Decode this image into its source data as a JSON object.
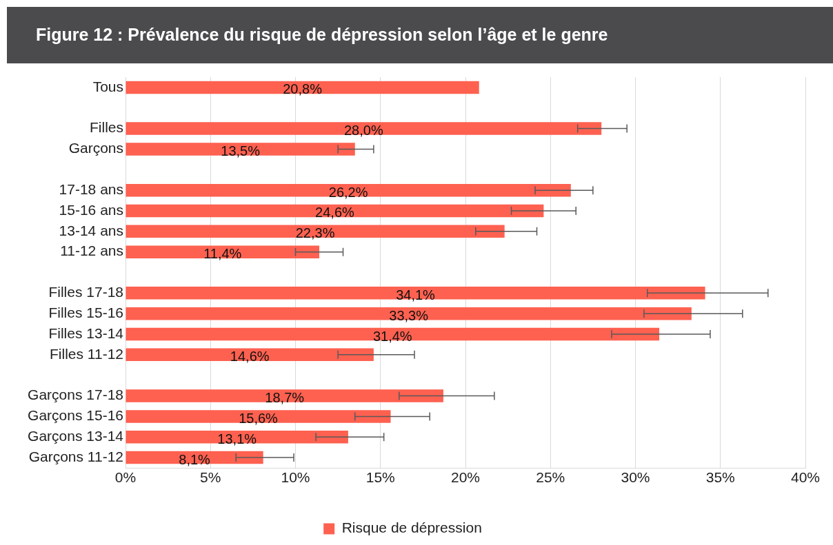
{
  "chart_data": {
    "type": "bar",
    "orientation": "horizontal",
    "title": "Figure 12 : Prévalence du risque de dépression selon l’âge et le genre",
    "categories": [
      "Tous",
      null,
      "Filles",
      "Garçons",
      null,
      "17-18 ans",
      "15-16 ans",
      "13-14 ans",
      "11-12 ans",
      null,
      "Filles 17-18",
      "Filles 15-16",
      "Filles 13-14",
      "Filles 11-12",
      null,
      "Garçons 17-18",
      "Garçons 15-16",
      "Garçons 13-14",
      "Garçons 11-12"
    ],
    "series": [
      {
        "name": "Risque de dépression",
        "color": "#fe6150",
        "values": [
          20.8,
          null,
          28.0,
          13.5,
          null,
          26.2,
          24.6,
          22.3,
          11.4,
          null,
          34.1,
          33.3,
          31.4,
          14.6,
          null,
          18.7,
          15.6,
          13.1,
          8.1
        ],
        "value_labels": [
          "20,8%",
          null,
          "28,0%",
          "13,5%",
          null,
          "26,2%",
          "24,6%",
          "22,3%",
          "11,4%",
          null,
          "34,1%",
          "33,3%",
          "31,4%",
          "14,6%",
          null,
          "18,7%",
          "15,6%",
          "13,1%",
          "8,1%"
        ],
        "errors": [
          null,
          null,
          [
            26.6,
            29.5
          ],
          [
            12.5,
            14.6
          ],
          null,
          [
            24.1,
            27.5
          ],
          [
            22.7,
            26.5
          ],
          [
            20.6,
            24.2
          ],
          [
            10.0,
            12.8
          ],
          null,
          [
            30.7,
            37.8
          ],
          [
            30.5,
            36.3
          ],
          [
            28.6,
            34.4
          ],
          [
            12.5,
            17.0
          ],
          null,
          [
            16.1,
            21.7
          ],
          [
            13.5,
            17.9
          ],
          [
            11.2,
            15.2
          ],
          [
            6.5,
            9.9
          ]
        ]
      }
    ],
    "xlim": [
      0,
      40
    ],
    "xticks": [
      {
        "value": 0,
        "label": "0%"
      },
      {
        "value": 5,
        "label": "5%"
      },
      {
        "value": 10,
        "label": "10%"
      },
      {
        "value": 15,
        "label": "15%"
      },
      {
        "value": 20,
        "label": "20%"
      },
      {
        "value": 25,
        "label": "25%"
      },
      {
        "value": 30,
        "label": "30%"
      },
      {
        "value": 35,
        "label": "35%"
      },
      {
        "value": 40,
        "label": "40%"
      }
    ],
    "grid": "x",
    "legend": "bottom"
  }
}
